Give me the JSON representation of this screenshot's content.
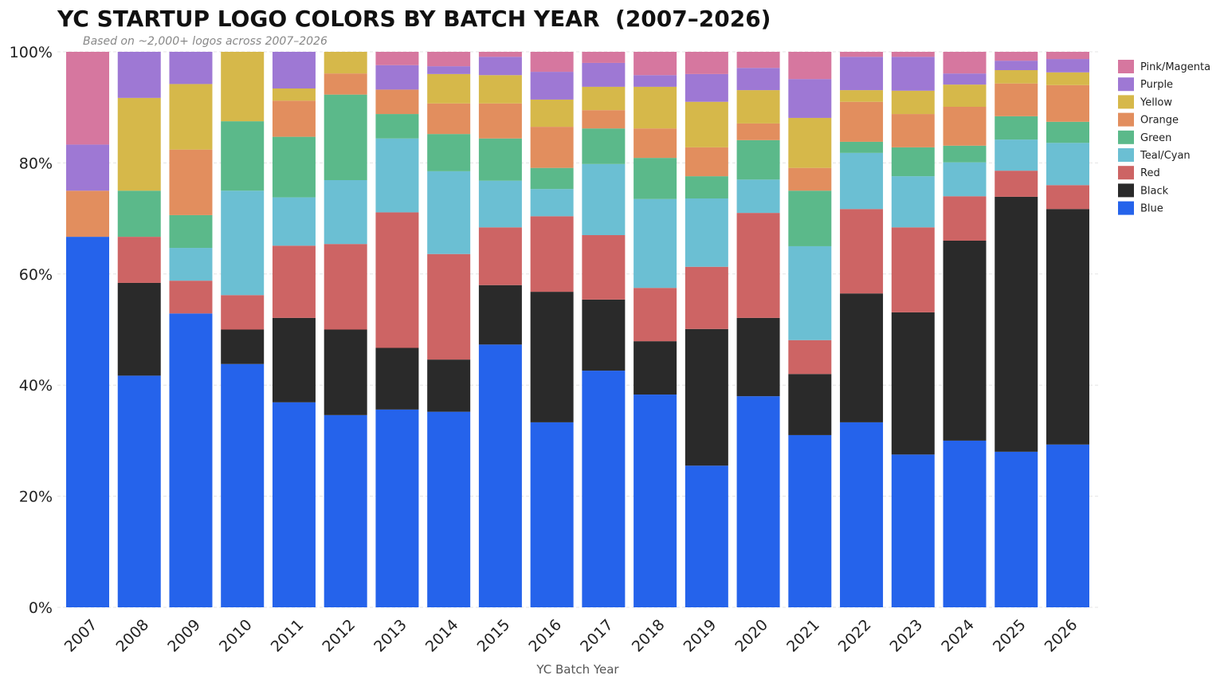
{
  "chart_data": {
    "type": "bar",
    "stacked": true,
    "normalized": true,
    "title": "YC STARTUP LOGO COLORS BY BATCH YEAR  (2007–2026)",
    "subtitle": "Based on ~2,000+ logos across 2007–2026",
    "xlabel": "YC Batch Year",
    "ylabel": "",
    "ylim": [
      0,
      100
    ],
    "yticks": [
      "0%",
      "20%",
      "40%",
      "60%",
      "80%",
      "100%"
    ],
    "grid": true,
    "legend_position": "right",
    "categories": [
      "2007",
      "2008",
      "2009",
      "2010",
      "2011",
      "2012",
      "2013",
      "2014",
      "2015",
      "2016",
      "2017",
      "2018",
      "2019",
      "2020",
      "2021",
      "2022",
      "2023",
      "2024",
      "2025",
      "2026"
    ],
    "series": [
      {
        "name": "Blue",
        "color": "#2563eb",
        "values": [
          66.7,
          41.7,
          52.9,
          43.8,
          36.9,
          34.6,
          35.6,
          35.2,
          47.3,
          33.3,
          42.6,
          38.3,
          25.5,
          38.0,
          31.0,
          33.3,
          27.5,
          30.0,
          28.0,
          29.3
        ]
      },
      {
        "name": "Black",
        "color": "#2a2a2a",
        "values": [
          0,
          16.7,
          0,
          6.2,
          15.2,
          15.4,
          11.1,
          9.4,
          10.7,
          23.5,
          12.8,
          9.6,
          24.6,
          14.1,
          11.0,
          23.2,
          25.6,
          36.0,
          45.9,
          42.4
        ]
      },
      {
        "name": "Red",
        "color": "#cd6464",
        "values": [
          0,
          8.3,
          5.9,
          6.2,
          13.0,
          15.4,
          24.4,
          19.0,
          10.4,
          13.6,
          11.6,
          9.6,
          11.2,
          18.9,
          6.1,
          15.2,
          15.3,
          8.0,
          4.7,
          4.3
        ]
      },
      {
        "name": "Teal/Cyan",
        "color": "#6bbfd3",
        "values": [
          0,
          0,
          5.9,
          18.8,
          8.7,
          11.5,
          13.3,
          14.9,
          8.4,
          4.9,
          12.8,
          16.0,
          12.3,
          6.0,
          16.9,
          10.1,
          9.2,
          6.1,
          5.6,
          7.6
        ]
      },
      {
        "name": "Green",
        "color": "#5bb98a",
        "values": [
          0,
          8.3,
          5.9,
          12.5,
          10.9,
          15.4,
          4.4,
          6.7,
          7.6,
          3.8,
          6.4,
          7.4,
          4.0,
          7.1,
          10.0,
          2.0,
          5.2,
          3.0,
          4.2,
          3.8
        ]
      },
      {
        "name": "Orange",
        "color": "#e28e5e",
        "values": [
          8.3,
          0,
          11.8,
          0,
          6.5,
          3.8,
          4.4,
          5.5,
          6.3,
          7.4,
          3.3,
          5.3,
          5.2,
          3.0,
          4.1,
          7.2,
          6.0,
          7.0,
          5.9,
          6.6
        ]
      },
      {
        "name": "Yellow",
        "color": "#d6b84a",
        "values": [
          0,
          16.7,
          11.8,
          12.5,
          2.2,
          3.9,
          0,
          5.3,
          5.1,
          4.9,
          4.2,
          7.5,
          8.2,
          6.0,
          9.0,
          2.1,
          4.2,
          4.0,
          2.4,
          2.3
        ]
      },
      {
        "name": "Purple",
        "color": "#9e78d4",
        "values": [
          8.3,
          8.3,
          5.8,
          0,
          6.6,
          0,
          4.4,
          1.4,
          3.3,
          5.0,
          4.3,
          2.1,
          5.0,
          4.0,
          7.0,
          6.0,
          6.1,
          2.0,
          1.7,
          2.4
        ]
      },
      {
        "name": "Pink/Magenta",
        "color": "#d6779f",
        "values": [
          16.7,
          0,
          0,
          0,
          0,
          0,
          2.4,
          2.6,
          0.9,
          3.6,
          2.0,
          4.2,
          4.0,
          2.9,
          4.9,
          0.9,
          0.9,
          3.9,
          1.6,
          1.3
        ]
      }
    ]
  }
}
